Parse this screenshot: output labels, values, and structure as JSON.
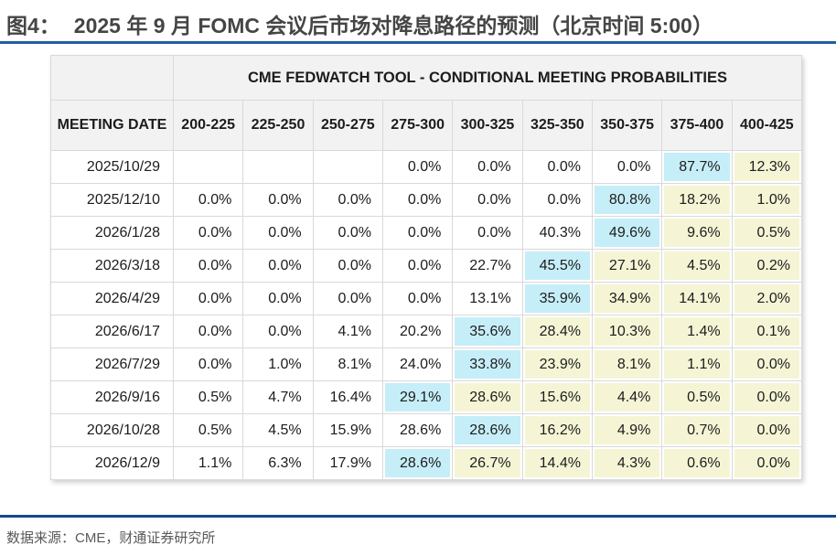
{
  "figure": {
    "label": "图4：",
    "title": "2025 年 9 月 FOMC 会议后市场对降息路径的预测（北京时间 5:00）"
  },
  "table": {
    "spanning_header": "CME FEDWATCH TOOL - CONDITIONAL MEETING PROBABILITIES",
    "date_column_header": "MEETING DATE",
    "rate_bins": [
      "200-225",
      "225-250",
      "250-275",
      "275-300",
      "300-325",
      "325-350",
      "350-375",
      "375-400",
      "400-425"
    ],
    "rows": [
      {
        "date": "2025/10/29",
        "values": [
          "",
          "",
          "",
          "0.0%",
          "0.0%",
          "0.0%",
          "0.0%",
          "87.7%",
          "12.3%"
        ],
        "highlights": [
          "",
          "",
          "",
          "",
          "",
          "",
          "",
          "cyan",
          "yellow"
        ]
      },
      {
        "date": "2025/12/10",
        "values": [
          "0.0%",
          "0.0%",
          "0.0%",
          "0.0%",
          "0.0%",
          "0.0%",
          "80.8%",
          "18.2%",
          "1.0%"
        ],
        "highlights": [
          "",
          "",
          "",
          "",
          "",
          "",
          "cyan",
          "yellow",
          "yellow"
        ]
      },
      {
        "date": "2026/1/28",
        "values": [
          "0.0%",
          "0.0%",
          "0.0%",
          "0.0%",
          "0.0%",
          "40.3%",
          "49.6%",
          "9.6%",
          "0.5%"
        ],
        "highlights": [
          "",
          "",
          "",
          "",
          "",
          "",
          "cyan",
          "yellow",
          "yellow"
        ]
      },
      {
        "date": "2026/3/18",
        "values": [
          "0.0%",
          "0.0%",
          "0.0%",
          "0.0%",
          "22.7%",
          "45.5%",
          "27.1%",
          "4.5%",
          "0.2%"
        ],
        "highlights": [
          "",
          "",
          "",
          "",
          "",
          "cyan",
          "yellow",
          "yellow",
          "yellow"
        ]
      },
      {
        "date": "2026/4/29",
        "values": [
          "0.0%",
          "0.0%",
          "0.0%",
          "0.0%",
          "13.1%",
          "35.9%",
          "34.9%",
          "14.1%",
          "2.0%"
        ],
        "highlights": [
          "",
          "",
          "",
          "",
          "",
          "cyan",
          "yellow",
          "yellow",
          "yellow"
        ]
      },
      {
        "date": "2026/6/17",
        "values": [
          "0.0%",
          "0.0%",
          "4.1%",
          "20.2%",
          "35.6%",
          "28.4%",
          "10.3%",
          "1.4%",
          "0.1%"
        ],
        "highlights": [
          "",
          "",
          "",
          "",
          "cyan",
          "yellow",
          "yellow",
          "yellow",
          "yellow"
        ]
      },
      {
        "date": "2026/7/29",
        "values": [
          "0.0%",
          "1.0%",
          "8.1%",
          "24.0%",
          "33.8%",
          "23.9%",
          "8.1%",
          "1.1%",
          "0.0%"
        ],
        "highlights": [
          "",
          "",
          "",
          "",
          "cyan",
          "yellow",
          "yellow",
          "yellow",
          "yellow"
        ]
      },
      {
        "date": "2026/9/16",
        "values": [
          "0.5%",
          "4.7%",
          "16.4%",
          "29.1%",
          "28.6%",
          "15.6%",
          "4.4%",
          "0.5%",
          "0.0%"
        ],
        "highlights": [
          "",
          "",
          "",
          "cyan",
          "yellow",
          "yellow",
          "yellow",
          "yellow",
          "yellow"
        ]
      },
      {
        "date": "2026/10/28",
        "values": [
          "0.5%",
          "4.5%",
          "15.9%",
          "28.6%",
          "28.6%",
          "16.2%",
          "4.9%",
          "0.7%",
          "0.0%"
        ],
        "highlights": [
          "",
          "",
          "",
          "",
          "cyan",
          "yellow",
          "yellow",
          "yellow",
          "yellow"
        ]
      },
      {
        "date": "2026/12/9",
        "values": [
          "1.1%",
          "6.3%",
          "17.9%",
          "28.6%",
          "26.7%",
          "14.4%",
          "4.3%",
          "0.6%",
          "0.0%"
        ],
        "highlights": [
          "",
          "",
          "",
          "cyan",
          "yellow",
          "yellow",
          "yellow",
          "yellow",
          "yellow"
        ]
      }
    ]
  },
  "footer": {
    "source_text": "数据来源：CME，财通证券研究所"
  },
  "colors": {
    "accent_line_top": "#245d9f",
    "accent_line_bottom": "#0f4a8c",
    "highlight_cyan": "#c6eef8",
    "highlight_yellow": "#f5f5d6",
    "header_bg": "#f2f2f2",
    "grid_border": "#d9d9d9"
  },
  "chart_data": {
    "type": "table",
    "title": "CME FEDWATCH TOOL - CONDITIONAL MEETING PROBABILITIES",
    "columns": [
      "MEETING DATE",
      "200-225",
      "225-250",
      "250-275",
      "275-300",
      "300-325",
      "325-350",
      "350-375",
      "375-400",
      "400-425"
    ],
    "rows": [
      [
        "2025/10/29",
        "",
        "",
        "",
        "0.0%",
        "0.0%",
        "0.0%",
        "0.0%",
        "87.7%",
        "12.3%"
      ],
      [
        "2025/12/10",
        "0.0%",
        "0.0%",
        "0.0%",
        "0.0%",
        "0.0%",
        "0.0%",
        "80.8%",
        "18.2%",
        "1.0%"
      ],
      [
        "2026/1/28",
        "0.0%",
        "0.0%",
        "0.0%",
        "0.0%",
        "0.0%",
        "40.3%",
        "49.6%",
        "9.6%",
        "0.5%"
      ],
      [
        "2026/3/18",
        "0.0%",
        "0.0%",
        "0.0%",
        "0.0%",
        "22.7%",
        "45.5%",
        "27.1%",
        "4.5%",
        "0.2%"
      ],
      [
        "2026/4/29",
        "0.0%",
        "0.0%",
        "0.0%",
        "0.0%",
        "13.1%",
        "35.9%",
        "34.9%",
        "14.1%",
        "2.0%"
      ],
      [
        "2026/6/17",
        "0.0%",
        "0.0%",
        "4.1%",
        "20.2%",
        "35.6%",
        "28.4%",
        "10.3%",
        "1.4%",
        "0.1%"
      ],
      [
        "2026/7/29",
        "0.0%",
        "1.0%",
        "8.1%",
        "24.0%",
        "33.8%",
        "23.9%",
        "8.1%",
        "1.1%",
        "0.0%"
      ],
      [
        "2026/9/16",
        "0.5%",
        "4.7%",
        "16.4%",
        "29.1%",
        "28.6%",
        "15.6%",
        "4.4%",
        "0.5%",
        "0.0%"
      ],
      [
        "2026/10/28",
        "0.5%",
        "4.5%",
        "15.9%",
        "28.6%",
        "28.6%",
        "16.2%",
        "4.9%",
        "0.7%",
        "0.0%"
      ],
      [
        "2026/12/9",
        "1.1%",
        "6.3%",
        "17.9%",
        "28.6%",
        "26.7%",
        "14.4%",
        "4.3%",
        "0.6%",
        "0.0%"
      ]
    ],
    "cell_highlights": {
      "cyan_cells": [
        [
          "2025/10/29",
          "375-400"
        ],
        [
          "2025/12/10",
          "350-375"
        ],
        [
          "2026/1/28",
          "350-375"
        ],
        [
          "2026/3/18",
          "325-350"
        ],
        [
          "2026/4/29",
          "325-350"
        ],
        [
          "2026/6/17",
          "300-325"
        ],
        [
          "2026/7/29",
          "300-325"
        ],
        [
          "2026/9/16",
          "275-300"
        ],
        [
          "2026/10/28",
          "300-325"
        ],
        [
          "2026/12/9",
          "275-300"
        ]
      ],
      "legend_position": "none",
      "grid": true
    }
  }
}
